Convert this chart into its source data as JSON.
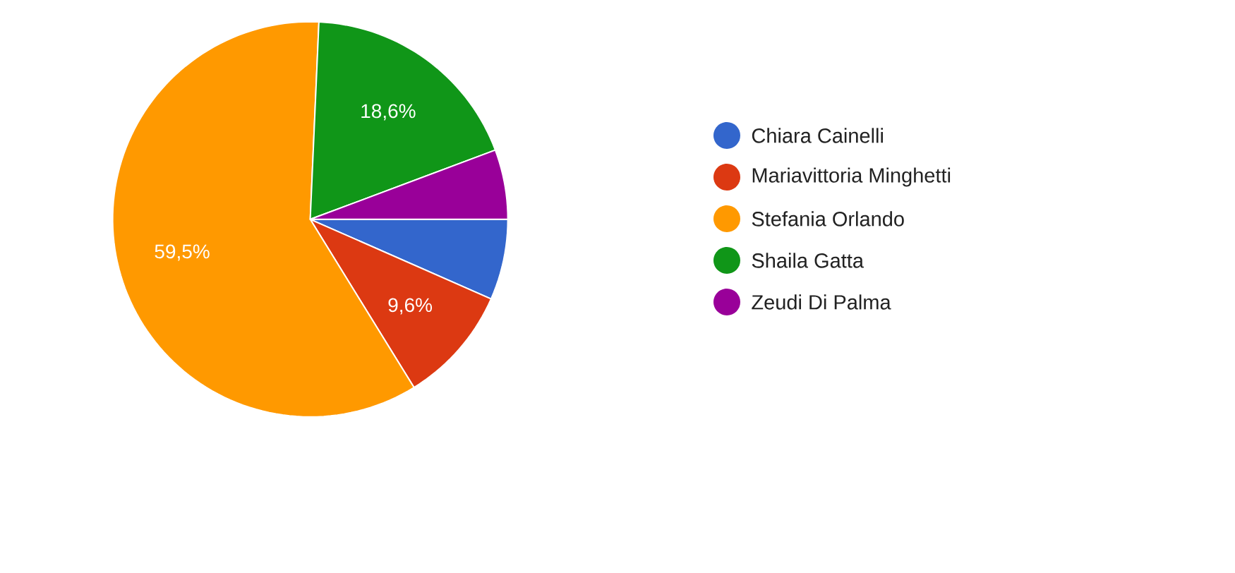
{
  "chart_data": {
    "type": "pie",
    "categories": [
      "Chiara Cainelli",
      "Mariavittoria Minghetti",
      "Stefania Orlando",
      "Shaila Gatta",
      "Zeudi Di Palma"
    ],
    "values": [
      6.6,
      9.6,
      59.5,
      18.6,
      5.7
    ],
    "colors": [
      "#3366cc",
      "#dc3912",
      "#ff9900",
      "#109618",
      "#990099"
    ],
    "value_labels": [
      null,
      "9,6%",
      "59,5%",
      "18,6%",
      null
    ],
    "legend": "right"
  }
}
